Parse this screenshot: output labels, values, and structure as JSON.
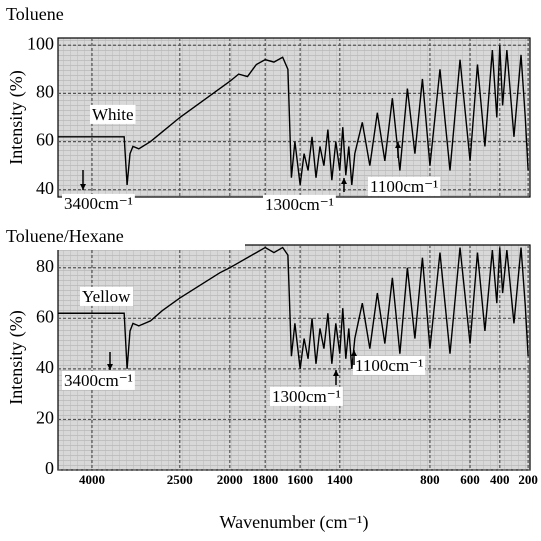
{
  "chart_data": [
    {
      "type": "line",
      "title": "Toluene",
      "y_label": "Intensity (%)",
      "annotations": [
        "White",
        "3400cm⁻¹",
        "1300cm⁻¹",
        "1100cm⁻¹"
      ],
      "xlim": [
        4550,
        180
      ],
      "xticks": [
        4000,
        2500,
        2000,
        1800,
        1600,
        1400,
        800,
        600,
        400,
        200
      ],
      "ylim": [
        37,
        103
      ],
      "yticks": [
        40,
        60,
        80,
        100
      ],
      "grid": true,
      "x": [
        4550,
        3600,
        3450,
        3400,
        3350,
        3300,
        3200,
        3000,
        2800,
        2500,
        2300,
        2100,
        2000,
        1950,
        1900,
        1850,
        1800,
        1750,
        1700,
        1670,
        1650,
        1630,
        1600,
        1580,
        1560,
        1540,
        1520,
        1500,
        1480,
        1460,
        1440,
        1420,
        1400,
        1380,
        1360,
        1340,
        1320,
        1300,
        1250,
        1200,
        1150,
        1100,
        1050,
        1000,
        950,
        900,
        850,
        800,
        750,
        700,
        650,
        600,
        550,
        500,
        450,
        420,
        400,
        380,
        350,
        300,
        250,
        220,
        200
      ],
      "series": [
        {
          "color": "#000000",
          "values": [
            62,
            62,
            62,
            42,
            55,
            58,
            57,
            60,
            64,
            70,
            76,
            82,
            85,
            88,
            87,
            92,
            94,
            93,
            95,
            90,
            45,
            60,
            42,
            55,
            48,
            62,
            45,
            58,
            50,
            65,
            44,
            60,
            48,
            66,
            46,
            58,
            42,
            55,
            68,
            50,
            72,
            52,
            78,
            48,
            82,
            55,
            86,
            50,
            90,
            48,
            94,
            52,
            92,
            58,
            98,
            70,
            100,
            75,
            98,
            62,
            96,
            70,
            48
          ]
        }
      ]
    },
    {
      "type": "line",
      "title": "Toluene/Hexane",
      "y_label": "Intensity (%)",
      "x_label": "Wavenumber (cm⁻¹)",
      "annotations": [
        "Yellow",
        "3400cm⁻¹",
        "1300cm⁻¹",
        "1100cm⁻¹"
      ],
      "xlim": [
        4550,
        180
      ],
      "xticks": [
        4000,
        2500,
        2000,
        1800,
        1600,
        1400,
        800,
        600,
        400,
        200
      ],
      "ylim": [
        0,
        89
      ],
      "yticks": [
        0,
        20,
        40,
        60,
        80
      ],
      "grid": true,
      "x": [
        4550,
        3600,
        3450,
        3400,
        3350,
        3300,
        3200,
        3000,
        2800,
        2500,
        2300,
        2100,
        2000,
        1950,
        1900,
        1850,
        1800,
        1750,
        1700,
        1670,
        1650,
        1630,
        1600,
        1580,
        1560,
        1540,
        1520,
        1500,
        1480,
        1460,
        1440,
        1420,
        1400,
        1380,
        1360,
        1340,
        1320,
        1300,
        1250,
        1200,
        1150,
        1100,
        1050,
        1000,
        950,
        900,
        850,
        800,
        750,
        700,
        650,
        600,
        550,
        500,
        450,
        420,
        400,
        380,
        350,
        300,
        250,
        220,
        200
      ],
      "series": [
        {
          "color": "#000000",
          "values": [
            62,
            62,
            62,
            40,
            55,
            58,
            57,
            59,
            63,
            68,
            73,
            78,
            80,
            82,
            84,
            86,
            88,
            86,
            88,
            85,
            45,
            58,
            40,
            52,
            44,
            60,
            42,
            56,
            48,
            62,
            42,
            58,
            46,
            64,
            44,
            56,
            40,
            52,
            66,
            48,
            70,
            50,
            76,
            46,
            80,
            52,
            84,
            48,
            86,
            46,
            88,
            50,
            86,
            55,
            87,
            66,
            88,
            70,
            87,
            58,
            88,
            65,
            45
          ]
        }
      ]
    }
  ]
}
